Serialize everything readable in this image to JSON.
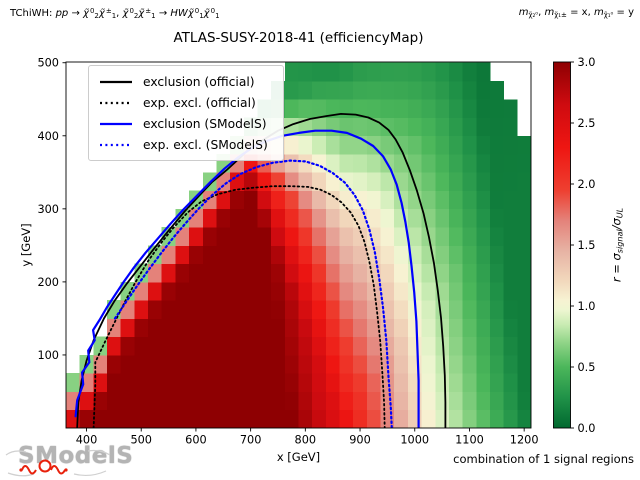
{
  "header": {
    "process_label_parts": [
      {
        "t": "TChiWH: "
      },
      {
        "t": "pp",
        "i": 1
      },
      {
        "t": " → "
      },
      {
        "t": "χ̃",
        "i": 1
      },
      {
        "t": "0",
        "s": "sup"
      },
      {
        "t": "2",
        "s": "sub"
      },
      {
        "t": "χ̃",
        "i": 1
      },
      {
        "t": "±",
        "s": "sup"
      },
      {
        "t": "1",
        "s": "sub"
      },
      {
        "t": ", "
      },
      {
        "t": "χ̃",
        "i": 1
      },
      {
        "t": "0",
        "s": "sup"
      },
      {
        "t": "2",
        "s": "sub"
      },
      {
        "t": "χ̃",
        "i": 1
      },
      {
        "t": "±",
        "s": "sup"
      },
      {
        "t": "1",
        "s": "sub"
      },
      {
        "t": " → "
      },
      {
        "t": "HW",
        "i": 1
      },
      {
        "t": "χ̃",
        "i": 1
      },
      {
        "t": "0",
        "s": "sup"
      },
      {
        "t": "1",
        "s": "sub"
      },
      {
        "t": "χ̃",
        "i": 1
      },
      {
        "t": "0",
        "s": "sup"
      },
      {
        "t": "1",
        "s": "sub"
      }
    ],
    "masses_label_parts": [
      {
        "t": "m",
        "i": 1
      },
      {
        "t": "χ̃₂⁰",
        "s": "sub"
      },
      {
        "t": ", "
      },
      {
        "t": "m",
        "i": 1
      },
      {
        "t": "χ̃₁±",
        "s": "sub"
      },
      {
        "t": " = x, "
      },
      {
        "t": "m",
        "i": 1
      },
      {
        "t": "χ̃₁⁰",
        "s": "sub"
      },
      {
        "t": " = y"
      }
    ],
    "title": "ATLAS-SUSY-2018-41 (efficiencyMap)"
  },
  "footer": {
    "combination_note": "combination of 1 signal regions",
    "logo_text": "SModelS"
  },
  "chart_data": {
    "type": "heatmap",
    "title": "ATLAS-SUSY-2018-41 (efficiencyMap)",
    "xlabel": "x [GeV]",
    "ylabel": "y [GeV]",
    "xlim": [
      362.5,
      1212.5
    ],
    "ylim": [
      0,
      501
    ],
    "x_ticks": [
      400,
      500,
      600,
      700,
      800,
      900,
      1000,
      1100,
      1200
    ],
    "y_ticks": [
      100,
      200,
      300,
      400,
      500
    ],
    "grid_on": false,
    "colorbar": {
      "label_parts": [
        {
          "t": "r",
          "i": 1
        },
        {
          "t": " = "
        },
        {
          "t": "σ",
          "i": 1
        },
        {
          "t": "signal",
          "s": "sub",
          "i": 1
        },
        {
          "t": "/"
        },
        {
          "t": "σ",
          "i": 1
        },
        {
          "t": "UL",
          "s": "sub",
          "i": 1
        }
      ],
      "ticks": [
        0.0,
        0.5,
        1.0,
        1.5,
        2.0,
        2.5,
        3.0
      ],
      "tick_labels": [
        "0.0",
        "0.5",
        "1.0",
        "1.5",
        "2.0",
        "2.5",
        "3.0"
      ],
      "vmin": 0.0,
      "vmax": 3.0,
      "cmap_stops": [
        [
          0.0,
          "#00682f"
        ],
        [
          0.25,
          "#209248"
        ],
        [
          0.5,
          "#4cb75b"
        ],
        [
          0.7,
          "#90d487"
        ],
        [
          0.85,
          "#c9ecb3"
        ],
        [
          0.97,
          "#eef6d1"
        ],
        [
          1.05,
          "#f7f2d2"
        ],
        [
          1.2,
          "#f2d9bd"
        ],
        [
          1.45,
          "#e7b3a4"
        ],
        [
          1.7,
          "#e4827a"
        ],
        [
          1.95,
          "#ee3f30"
        ],
        [
          2.3,
          "#ee1612"
        ],
        [
          2.65,
          "#cf0b10"
        ],
        [
          3.0,
          "#8e0002"
        ]
      ]
    },
    "heatmap": {
      "quantity": "r = sigma_signal / sigma_UL",
      "x0": 375,
      "dx": 25,
      "nx": 34,
      "y0": 12.5,
      "dy": 25,
      "ny": 20,
      "boundary": {
        "diag_delta_lowx": 300,
        "diag_delta": 275,
        "diag_delta_switch_x": 450,
        "top_cut_start": 1125,
        "top_cut_slope": 1.2,
        "ymax": 500
      },
      "r_model": {
        "base_x": [
          [
            780,
            3.0
          ],
          [
            850,
            2.55
          ],
          [
            945,
            1.75
          ],
          [
            1035,
            1.0
          ],
          [
            1210,
            0.13
          ]
        ],
        "y_shift": 0.2,
        "edge_profile": [
          [
            0,
            0.1
          ],
          [
            0.45,
            0.13
          ],
          [
            1.0,
            0.43
          ],
          [
            1.55,
            0.73
          ],
          [
            2.1,
            0.9
          ],
          [
            2.6,
            1.0
          ]
        ],
        "edge_width": {
          "x_ref": 700,
          "w0": 45,
          "slope": 1.1,
          "min": 40,
          "max": 230
        }
      }
    },
    "contours": [
      {
        "name": "exclusion (official)",
        "color": "#000000",
        "style": "solid",
        "width": 1.8,
        "points": [
          [
            383,
            0
          ],
          [
            385,
            35
          ],
          [
            391,
            65
          ],
          [
            400,
            92
          ],
          [
            413,
            120
          ],
          [
            432,
            150
          ],
          [
            452,
            175
          ],
          [
            474,
            198
          ],
          [
            498,
            221
          ],
          [
            524,
            246
          ],
          [
            552,
            272
          ],
          [
            580,
            297
          ],
          [
            606,
            318
          ],
          [
            630,
            337
          ],
          [
            648,
            348
          ],
          [
            656,
            353
          ],
          [
            672,
            364
          ],
          [
            696,
            381
          ],
          [
            722,
            394
          ],
          [
            750,
            407
          ],
          [
            778,
            416
          ],
          [
            808,
            423
          ],
          [
            838,
            427
          ],
          [
            865,
            430
          ],
          [
            892,
            429
          ],
          [
            915,
            425
          ],
          [
            935,
            418
          ],
          [
            952,
            408
          ],
          [
            965,
            395
          ],
          [
            978,
            377
          ],
          [
            991,
            353
          ],
          [
            1004,
            325
          ],
          [
            1016,
            294
          ],
          [
            1026,
            261
          ],
          [
            1035,
            226
          ],
          [
            1042,
            189
          ],
          [
            1048,
            151
          ],
          [
            1052,
            112
          ],
          [
            1055,
            72
          ],
          [
            1056,
            35
          ],
          [
            1056,
            0
          ]
        ]
      },
      {
        "name": "exp. excl. (official)",
        "color": "#000000",
        "style": "dotted",
        "width": 1.8,
        "points": [
          [
            413,
            0
          ],
          [
            416,
            60
          ],
          [
            416,
            90
          ],
          [
            435,
            120
          ],
          [
            453,
            147
          ],
          [
            471,
            174
          ],
          [
            489,
            199
          ],
          [
            513,
            229
          ],
          [
            537,
            254
          ],
          [
            560,
            275
          ],
          [
            585,
            295
          ],
          [
            610,
            310
          ],
          [
            640,
            320
          ],
          [
            672,
            326
          ],
          [
            705,
            329
          ],
          [
            740,
            331
          ],
          [
            775,
            331
          ],
          [
            805,
            330
          ],
          [
            828,
            326
          ],
          [
            848,
            319
          ],
          [
            866,
            309
          ],
          [
            883,
            295
          ],
          [
            897,
            277
          ],
          [
            908,
            255
          ],
          [
            917,
            228
          ],
          [
            925,
            196
          ],
          [
            931,
            160
          ],
          [
            937,
            118
          ],
          [
            941,
            72
          ],
          [
            944,
            35
          ],
          [
            945,
            0
          ]
        ]
      },
      {
        "name": "exclusion (SModelS)",
        "color": "#0000ff",
        "style": "solid",
        "width": 2.2,
        "points": [
          [
            380,
            16
          ],
          [
            383,
            38
          ],
          [
            394,
            60
          ],
          [
            392,
            76
          ],
          [
            405,
            90
          ],
          [
            403,
            106
          ],
          [
            415,
            120
          ],
          [
            412,
            134
          ],
          [
            424,
            148
          ],
          [
            437,
            165
          ],
          [
            452,
            182
          ],
          [
            468,
            200
          ],
          [
            487,
            220
          ],
          [
            508,
            240
          ],
          [
            530,
            259
          ],
          [
            553,
            279
          ],
          [
            577,
            299
          ],
          [
            602,
            318
          ],
          [
            627,
            337
          ],
          [
            652,
            355
          ],
          [
            678,
            371
          ],
          [
            704,
            384
          ],
          [
            730,
            393
          ],
          [
            758,
            400
          ],
          [
            788,
            404
          ],
          [
            818,
            407
          ],
          [
            848,
            407
          ],
          [
            876,
            404
          ],
          [
            902,
            396
          ],
          [
            924,
            386
          ],
          [
            942,
            372
          ],
          [
            956,
            354
          ],
          [
            967,
            333
          ],
          [
            976,
            308
          ],
          [
            983,
            282
          ],
          [
            989,
            254
          ],
          [
            994,
            222
          ],
          [
            999,
            186
          ],
          [
            1003,
            146
          ],
          [
            1005,
            106
          ],
          [
            1007,
            65
          ],
          [
            1007,
            30
          ],
          [
            1007,
            0
          ]
        ]
      },
      {
        "name": "exp. excl. (SModelS)",
        "color": "#0000ff",
        "style": "dotted",
        "width": 2.2,
        "points": [
          [
            452,
            150
          ],
          [
            470,
            170
          ],
          [
            490,
            192
          ],
          [
            512,
            215
          ],
          [
            535,
            238
          ],
          [
            558,
            260
          ],
          [
            582,
            281
          ],
          [
            606,
            301
          ],
          [
            630,
            319
          ],
          [
            655,
            335
          ],
          [
            682,
            348
          ],
          [
            710,
            357
          ],
          [
            740,
            363
          ],
          [
            772,
            366
          ],
          [
            800,
            365
          ],
          [
            826,
            359
          ],
          [
            850,
            349
          ],
          [
            872,
            336
          ],
          [
            890,
            319
          ],
          [
            905,
            298
          ],
          [
            917,
            272
          ],
          [
            927,
            241
          ],
          [
            935,
            205
          ],
          [
            942,
            165
          ],
          [
            948,
            120
          ],
          [
            952,
            70
          ],
          [
            956,
            30
          ],
          [
            958,
            0
          ]
        ]
      }
    ],
    "legend": {
      "position": "upper left",
      "entries": [
        {
          "label": "exclusion (official)",
          "color": "#000000",
          "style": "solid"
        },
        {
          "label": "exp. excl. (official)",
          "color": "#000000",
          "style": "dotted"
        },
        {
          "label": "exclusion (SModelS)",
          "color": "#0000ff",
          "style": "solid"
        },
        {
          "label": "exp. excl. (SModelS)",
          "color": "#0000ff",
          "style": "dotted"
        }
      ]
    }
  }
}
